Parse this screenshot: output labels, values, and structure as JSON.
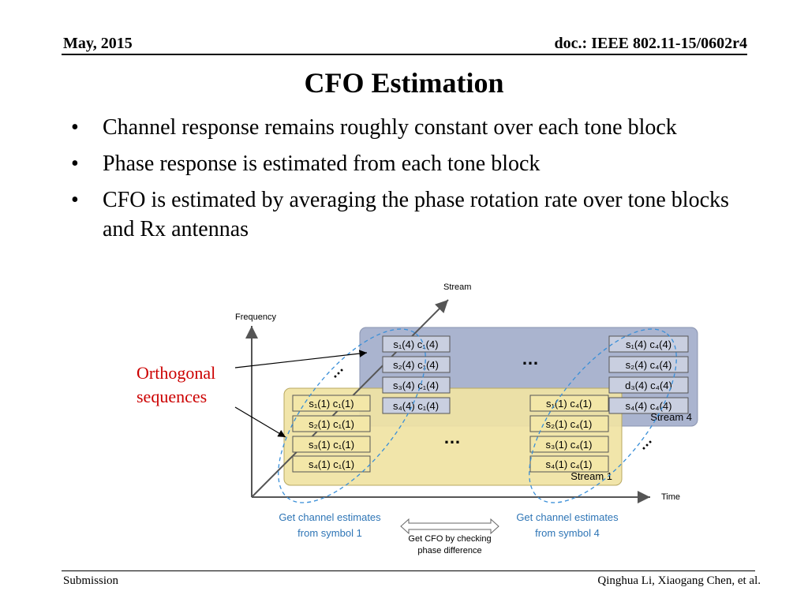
{
  "header": {
    "date": "May, 2015",
    "doc": "doc.: IEEE 802.11-15/0602r4"
  },
  "title": "CFO Estimation",
  "bullets": [
    "Channel response remains roughly constant over each tone block",
    "Phase response is estimated from each tone block",
    "CFO is estimated by averaging the phase rotation rate over tone blocks and Rx antennas"
  ],
  "diagram": {
    "axis_labels": {
      "frequency": "Frequency",
      "stream": "Stream",
      "time": "Time"
    },
    "annotation": {
      "line1": "Orthogonal",
      "line2": "sequences"
    },
    "back_block": {
      "label": "Stream 4",
      "left_cells": [
        "s₁(4) c₁(4)",
        "s₂(4) c₁(4)",
        "s₃(4) c₁(4)",
        "s₄(4) c₁(4)"
      ],
      "right_cells": [
        "s₁(4) c₄(4)",
        "s₂(4) c₄(4)",
        "d₃(4) c₄(4)",
        "s₄(4) c₄(4)"
      ]
    },
    "front_block": {
      "label": "Stream 1",
      "left_cells": [
        "s₁(1) c₁(1)",
        "s₂(1) c₁(1)",
        "s₃(1) c₁(1)",
        "s₄(1) c₁(1)"
      ],
      "right_cells": [
        "s₁(1) c₄(1)",
        "s₂(1) c₄(1)",
        "s₃(1) c₄(1)",
        "s₄(1) c₄(1)"
      ]
    },
    "ellipsis": "…",
    "bottom": {
      "left": [
        "Get channel estimates",
        "from symbol 1"
      ],
      "right": [
        "Get channel estimates",
        "from symbol 4"
      ],
      "middle": [
        "Get CFO by checking",
        "phase difference"
      ]
    },
    "colors": {
      "blue_text": "#2e75b6",
      "block_back": "#aab4cf",
      "block_front": "#f0e3a4",
      "cell_back": "#c9cfe0",
      "cell_front": "#f3e7a8",
      "ellipse": "#3a8fd8",
      "annotation": "#cc0000"
    }
  },
  "footer": {
    "left": "Submission",
    "right": "Qinghua Li, Xiaogang Chen, et al."
  }
}
